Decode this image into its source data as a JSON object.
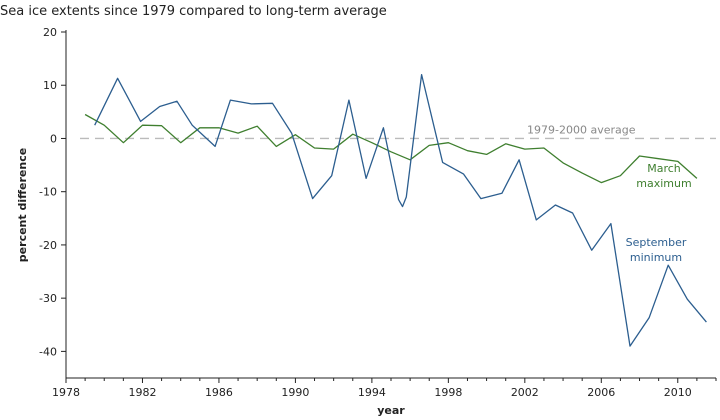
{
  "chart_data": {
    "type": "line",
    "title": "Sea ice extents since 1979 compared to long-term average",
    "xlabel": "year",
    "ylabel": "percent difference",
    "xlim": [
      1978,
      2012
    ],
    "ylim": [
      -45,
      20
    ],
    "x_ticks": [
      1978,
      1982,
      1986,
      1990,
      1994,
      1998,
      2002,
      2006,
      2010
    ],
    "y_ticks": [
      20,
      10,
      0,
      -10,
      -20,
      -30,
      -40
    ],
    "x_tick_labels": [
      "1978",
      "1982",
      "1986",
      "1990",
      "1994",
      "1998",
      "2002",
      "2006",
      "2010"
    ],
    "y_tick_labels": [
      "20",
      "10",
      "0",
      "-10",
      "-20",
      "-30",
      "-40"
    ],
    "grid": false,
    "reference_line": {
      "label": "1979-2000 average",
      "value": 0,
      "color": "#bbbbbb"
    },
    "series": [
      {
        "name": "March maximum",
        "label_lines": [
          "March",
          "maximum"
        ],
        "color": "#3f7f2f",
        "x": [
          1979,
          1980,
          1981,
          1982,
          1983,
          1984,
          1985,
          1986,
          1987,
          1988,
          1989,
          1990,
          1991,
          1992,
          1993,
          1994,
          1995,
          1996,
          1997,
          1998,
          1999,
          2000,
          2001,
          2002,
          2003,
          2004,
          2005,
          2006,
          2007,
          2008,
          2009,
          2010,
          2011,
          2012
        ],
        "values": [
          4.5,
          2.5,
          -0.8,
          2.5,
          2.4,
          -0.8,
          2.0,
          2.0,
          1.0,
          2.3,
          -1.5,
          0.7,
          -1.8,
          -2.0,
          0.8,
          -0.8,
          -2.5,
          -4.0,
          -1.3,
          -0.8,
          -2.3,
          -3.0,
          -1.0,
          -2.0,
          -1.8,
          -4.6,
          -6.5,
          -8.3,
          -7.0,
          -3.3,
          -3.8,
          -4.3,
          -7.5,
          null
        ]
      },
      {
        "name": "September minimum",
        "label_lines": [
          "September",
          "minimum"
        ],
        "color": "#2c5e8f",
        "x": [
          1979.5,
          1980.7,
          1981.9,
          1982.9,
          1983.8,
          1984.6,
          1985.8,
          1986.6,
          1987.7,
          1988.8,
          1989.8,
          1990.9,
          1991.9,
          1992.8,
          1993.7,
          1994.6,
          1995.4,
          1995.6,
          1995.8,
          1996.6,
          1997.7,
          1998.8,
          1999.7,
          2000.8,
          2001.7,
          2002.6,
          2003.6,
          2004.5,
          2005.5,
          2006.5,
          2007.5,
          2008.5,
          2009.5,
          2010.5,
          2011.5
        ],
        "values": [
          2.5,
          11.3,
          3.2,
          6.0,
          7.0,
          2.5,
          -1.5,
          7.2,
          6.5,
          6.6,
          1.0,
          -11.3,
          -7.0,
          7.2,
          -7.5,
          2.0,
          -11.5,
          -12.8,
          -11.0,
          12.0,
          -4.5,
          -6.7,
          -11.3,
          -10.3,
          -4.0,
          -15.3,
          -12.5,
          -14.0,
          -21.0,
          -16.0,
          -39.0,
          -33.7,
          -23.8,
          -30.2,
          -34.5
        ]
      }
    ]
  }
}
